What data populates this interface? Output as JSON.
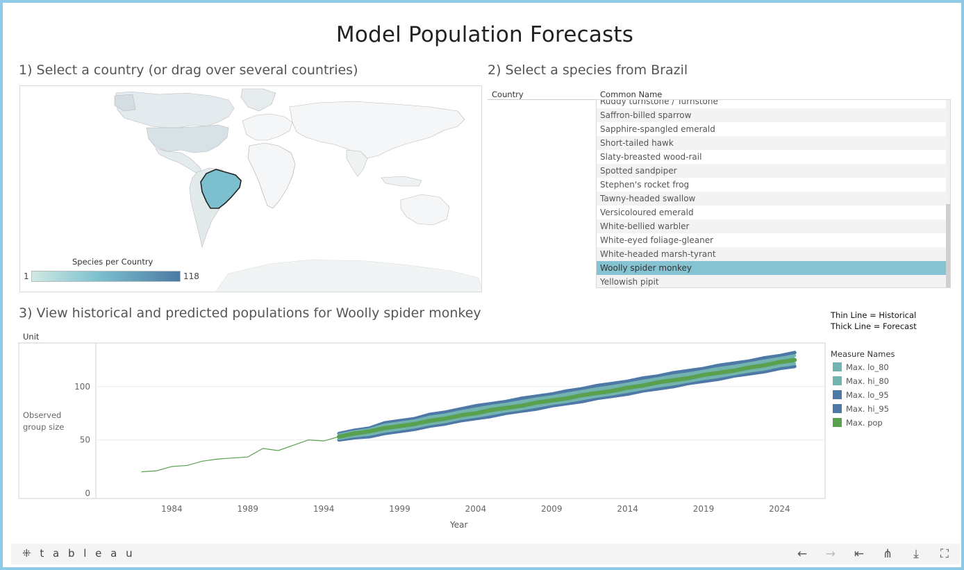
{
  "title": "Model Population Forecasts",
  "section1": {
    "title": "1) Select a country (or drag over several countries)"
  },
  "map_legend": {
    "title": "Species per Country",
    "min": "1",
    "max": "118"
  },
  "section2": {
    "title": "2) Select a species from Brazil",
    "col_country": "Country",
    "col_name": "Common Name"
  },
  "species_list": [
    "Ruddy turnstone / Turnstone",
    "Saffron-billed sparrow",
    "Sapphire-spangled emerald",
    "Short-tailed hawk",
    "Slaty-breasted wood-rail",
    "Spotted sandpiper",
    "Stephen's rocket frog",
    "Tawny-headed swallow",
    "Versicoloured emerald",
    "White-bellied warbler",
    "White-eyed foliage-gleaner",
    "White-headed marsh-tyrant",
    "Woolly spider monkey",
    "Yellowish pipit"
  ],
  "selected_species": "Woolly spider monkey",
  "section3": {
    "title": "3) View historical and predicted populations for Woolly spider monkey"
  },
  "notes": {
    "historical": "Thin Line = Historical",
    "forecast": "Thick Line = Forecast"
  },
  "chart_legend": {
    "title": "Measure Names",
    "items": [
      {
        "label": "Max. lo_80",
        "color": "#73b3b0"
      },
      {
        "label": "Max. hi_80",
        "color": "#73b3b0"
      },
      {
        "label": "Max. lo_95",
        "color": "#4e79a7"
      },
      {
        "label": "Max. hi_95",
        "color": "#4e79a7"
      },
      {
        "label": "Max. pop",
        "color": "#59a14f"
      }
    ]
  },
  "axis": {
    "unit": "Unit",
    "ylabel_line1": "Observed",
    "ylabel_line2": "group size",
    "xlabel": "Year"
  },
  "chart_data": {
    "type": "line",
    "x_ticks": [
      1984,
      1989,
      1994,
      1999,
      2004,
      2009,
      2014,
      2019,
      2024
    ],
    "y_ticks": [
      0,
      50,
      100
    ],
    "xlim": [
      1979,
      2027
    ],
    "ylim": [
      -5,
      141
    ],
    "historical": {
      "name": "Max. pop",
      "x": [
        1982,
        1983,
        1984,
        1985,
        1986,
        1987,
        1988,
        1989,
        1990,
        1991,
        1992,
        1993,
        1994,
        1995
      ],
      "y": [
        20,
        21,
        25,
        26,
        30,
        32,
        33,
        34,
        42,
        40,
        45,
        50,
        49,
        53
      ]
    },
    "forecast": {
      "x": [
        1995,
        1996,
        1997,
        1998,
        1999,
        2000,
        2001,
        2002,
        2003,
        2004,
        2005,
        2006,
        2007,
        2008,
        2009,
        2010,
        2011,
        2012,
        2013,
        2014,
        2015,
        2016,
        2017,
        2018,
        2019,
        2020,
        2021,
        2022,
        2023,
        2024,
        2025
      ],
      "pop": [
        53,
        56,
        58,
        61,
        63,
        65,
        68,
        70,
        73,
        75,
        78,
        80,
        82,
        85,
        87,
        89,
        92,
        94,
        96,
        99,
        101,
        104,
        106,
        108,
        111,
        113,
        115,
        118,
        120,
        123,
        125
      ],
      "lo_95": [
        50,
        52,
        53,
        56,
        58,
        60,
        63,
        65,
        68,
        70,
        72,
        75,
        77,
        79,
        82,
        84,
        86,
        89,
        91,
        93,
        96,
        98,
        100,
        103,
        105,
        107,
        110,
        112,
        114,
        117,
        119
      ],
      "hi_95": [
        56,
        59,
        61,
        66,
        68,
        70,
        74,
        76,
        79,
        82,
        84,
        86,
        89,
        91,
        93,
        96,
        98,
        101,
        103,
        105,
        108,
        110,
        113,
        115,
        117,
        120,
        122,
        124,
        127,
        129,
        132
      ]
    },
    "colors": {
      "historical": "#59a14f",
      "forecast": "#59a14f",
      "band80": "#73b3b0",
      "band95": "#4e79a7"
    }
  }
}
